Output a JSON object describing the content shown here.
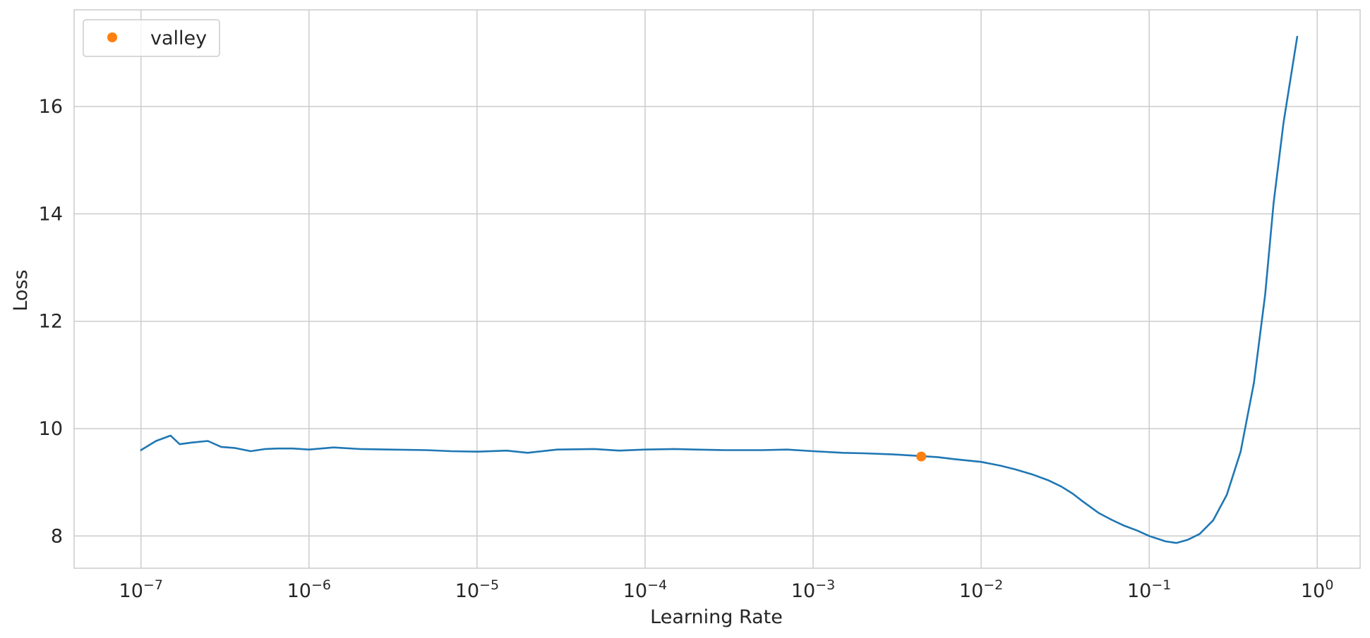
{
  "chart_data": {
    "type": "line",
    "title": "",
    "xlabel": "Learning Rate",
    "ylabel": "Loss",
    "x_scale": "log",
    "xlim": [
      4e-08,
      1.8
    ],
    "ylim": [
      7.4,
      17.8
    ],
    "grid": true,
    "legend": {
      "position": "top-left",
      "entries": [
        "valley"
      ]
    },
    "x_ticks": [
      {
        "value": 1e-07,
        "base": "10",
        "exp": "−7"
      },
      {
        "value": 1e-06,
        "base": "10",
        "exp": "−6"
      },
      {
        "value": 1e-05,
        "base": "10",
        "exp": "−5"
      },
      {
        "value": 0.0001,
        "base": "10",
        "exp": "−4"
      },
      {
        "value": 0.001,
        "base": "10",
        "exp": "−3"
      },
      {
        "value": 0.01,
        "base": "10",
        "exp": "−2"
      },
      {
        "value": 0.1,
        "base": "10",
        "exp": "−1"
      },
      {
        "value": 1,
        "base": "10",
        "exp": "0"
      }
    ],
    "y_ticks": [
      8,
      10,
      12,
      14,
      16
    ],
    "series": [
      {
        "color": "#1f77b4",
        "kind": "line",
        "x": [
          1e-07,
          1.23e-07,
          1.5e-07,
          1.7e-07,
          2e-07,
          2.5e-07,
          3e-07,
          3.6e-07,
          4.5e-07,
          5.5e-07,
          6.5e-07,
          8e-07,
          1e-06,
          1.4e-06,
          2e-06,
          3e-06,
          5e-06,
          7e-06,
          1e-05,
          1.5e-05,
          2e-05,
          3e-05,
          5e-05,
          7e-05,
          0.0001,
          0.00015,
          0.0002,
          0.0003,
          0.0005,
          0.0007,
          0.001,
          0.0015,
          0.002,
          0.003,
          0.0043,
          0.0055,
          0.007,
          0.01,
          0.013,
          0.016,
          0.02,
          0.025,
          0.03,
          0.035,
          0.04,
          0.05,
          0.06,
          0.07,
          0.085,
          0.1,
          0.125,
          0.145,
          0.17,
          0.2,
          0.24,
          0.29,
          0.35,
          0.42,
          0.49,
          0.55,
          0.63,
          0.76
        ],
        "y": [
          9.6,
          9.77,
          9.87,
          9.71,
          9.74,
          9.77,
          9.66,
          9.64,
          9.58,
          9.62,
          9.63,
          9.63,
          9.61,
          9.65,
          9.62,
          9.61,
          9.6,
          9.58,
          9.57,
          9.59,
          9.55,
          9.61,
          9.62,
          9.59,
          9.61,
          9.62,
          9.61,
          9.6,
          9.6,
          9.61,
          9.58,
          9.55,
          9.54,
          9.52,
          9.49,
          9.47,
          9.43,
          9.38,
          9.31,
          9.24,
          9.15,
          9.04,
          8.92,
          8.79,
          8.65,
          8.43,
          8.3,
          8.2,
          8.1,
          8.0,
          7.9,
          7.87,
          7.93,
          8.04,
          8.29,
          8.77,
          9.57,
          10.85,
          12.5,
          14.2,
          15.7,
          17.3
        ]
      },
      {
        "name": "valley",
        "color": "#ff7f0e",
        "kind": "point",
        "x": [
          0.0044
        ],
        "y": [
          9.48
        ]
      }
    ]
  }
}
